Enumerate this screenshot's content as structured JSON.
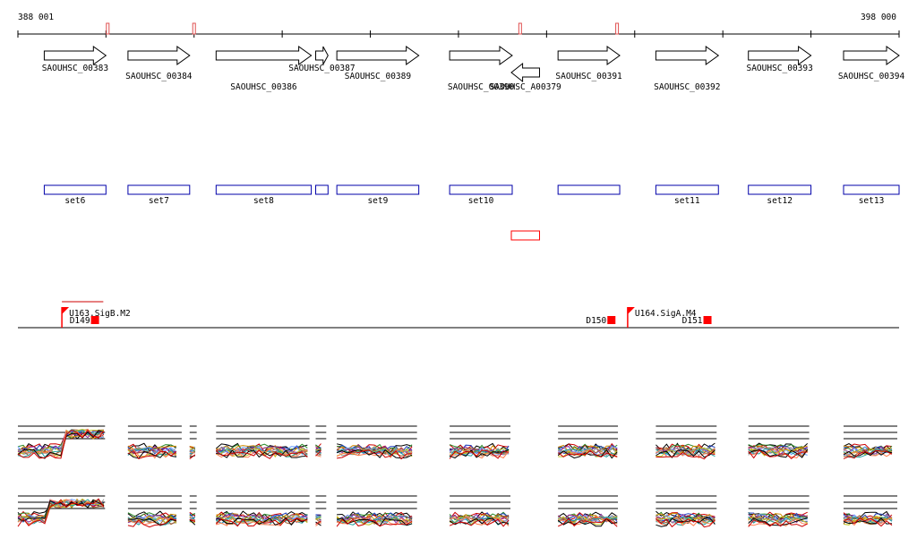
{
  "axis": {
    "start_label": "388 001",
    "end_label": "398 000",
    "start_bp": 388001,
    "end_bp": 398000,
    "color": "#000000"
  },
  "colors": {
    "gene": "#000000",
    "set_box": "#0000aa",
    "marker_red": "#ff0000",
    "axis_tick_mark": "#e05050",
    "annotation_line": "#cc0000"
  },
  "axis_marks": [
    {
      "bp": 389020
    },
    {
      "bp": 390000
    },
    {
      "bp": 393700
    },
    {
      "bp": 394800
    }
  ],
  "genes": [
    {
      "name": "SAOUHSC_00383",
      "start": 388300,
      "end": 389000,
      "strand": "+",
      "label_row": 1
    },
    {
      "name": "SAOUHSC_00384",
      "start": 389250,
      "end": 389950,
      "strand": "+",
      "label_row": 2
    },
    {
      "name": "SAOUHSC_00386",
      "start": 390250,
      "end": 391330,
      "strand": "+",
      "label_row": 3
    },
    {
      "name": "SAOUHSC_00387",
      "start": 391380,
      "end": 391520,
      "strand": "+",
      "label_row": 1
    },
    {
      "name": "SAOUHSC_00389",
      "start": 391620,
      "end": 392550,
      "strand": "+",
      "label_row": 2
    },
    {
      "name": "SAOUHSC_00390",
      "start": 392900,
      "end": 393610,
      "strand": "+",
      "label_row": 3
    },
    {
      "name": "SAOUHSC_A00379",
      "start": 393600,
      "end": 393920,
      "strand": "-",
      "label_row": 3
    },
    {
      "name": "SAOUHSC_00391",
      "start": 394130,
      "end": 394830,
      "strand": "+",
      "label_row": 2
    },
    {
      "name": "SAOUHSC_00392",
      "start": 395240,
      "end": 395950,
      "strand": "+",
      "label_row": 3
    },
    {
      "name": "SAOUHSC_00393",
      "start": 396290,
      "end": 397000,
      "strand": "+",
      "label_row": 1
    },
    {
      "name": "SAOUHSC_00394",
      "start": 397370,
      "end": 398000,
      "strand": "+",
      "label_row": 2
    }
  ],
  "sets": [
    {
      "name": "set6",
      "start": 388300,
      "end": 389000
    },
    {
      "name": "set7",
      "start": 389250,
      "end": 389950
    },
    {
      "name": "set8",
      "start": 390250,
      "end": 391330
    },
    {
      "name": "",
      "start": 391380,
      "end": 391520
    },
    {
      "name": "set9",
      "start": 391620,
      "end": 392550
    },
    {
      "name": "set10",
      "start": 392900,
      "end": 393610
    },
    {
      "name": "",
      "start": 394130,
      "end": 394830
    },
    {
      "name": "set11",
      "start": 395240,
      "end": 395950
    },
    {
      "name": "set12",
      "start": 396290,
      "end": 397000
    },
    {
      "name": "set13",
      "start": 397370,
      "end": 398000
    }
  ],
  "red_box": {
    "start": 393600,
    "end": 393920
  },
  "annotations": [
    {
      "label": "U163.SigB.M2",
      "kind": "promoter",
      "bp": 388500,
      "span_end": 388970
    },
    {
      "label": "U164.SigA.M4",
      "kind": "promoter",
      "bp": 394920,
      "span_end": null
    },
    {
      "label": "D149",
      "kind": "terminator",
      "bp": 388830
    },
    {
      "label": "D150",
      "kind": "terminator",
      "bp": 394690
    },
    {
      "label": "D151",
      "kind": "terminator",
      "bp": 395780
    }
  ],
  "expression": {
    "tracks": [
      {
        "name": "track-1",
        "high_region": {
          "start": 388520,
          "end": 388980
        }
      },
      {
        "name": "track-2",
        "high_region": {
          "start": 388360,
          "end": 389050
        }
      }
    ]
  }
}
